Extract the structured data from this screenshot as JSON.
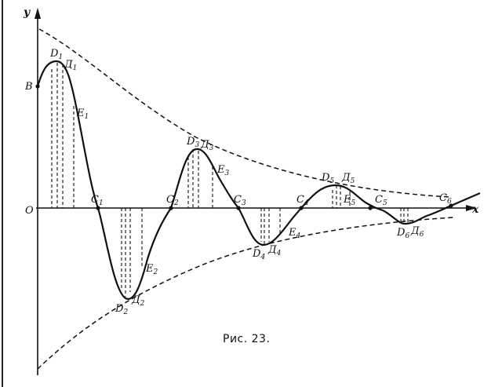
{
  "axes": {
    "x_label": "x",
    "y_label": "y",
    "origin_label": "O",
    "y0_label": "B"
  },
  "caption": "Рис. 23.",
  "points": [
    {
      "letter": "D",
      "index": "1"
    },
    {
      "letter": "Д",
      "index": "1"
    },
    {
      "letter": "E",
      "index": "1"
    },
    {
      "letter": "C",
      "index": "1"
    },
    {
      "letter": "D",
      "index": "2"
    },
    {
      "letter": "Д",
      "index": "2"
    },
    {
      "letter": "E",
      "index": "2"
    },
    {
      "letter": "C",
      "index": "2"
    },
    {
      "letter": "D",
      "index": "3"
    },
    {
      "letter": "Д",
      "index": "3"
    },
    {
      "letter": "E",
      "index": "3"
    },
    {
      "letter": "C",
      "index": "3"
    },
    {
      "letter": "D",
      "index": "4"
    },
    {
      "letter": "Д",
      "index": "4"
    },
    {
      "letter": "E",
      "index": "4"
    },
    {
      "letter": "C",
      "index": "4"
    },
    {
      "letter": "D",
      "index": "5"
    },
    {
      "letter": "Д",
      "index": "5"
    },
    {
      "letter": "E",
      "index": "5"
    },
    {
      "letter": "C",
      "index": "5"
    },
    {
      "letter": "D",
      "index": "6"
    },
    {
      "letter": "Д",
      "index": "6"
    },
    {
      "letter": "C",
      "index": "6"
    }
  ]
}
